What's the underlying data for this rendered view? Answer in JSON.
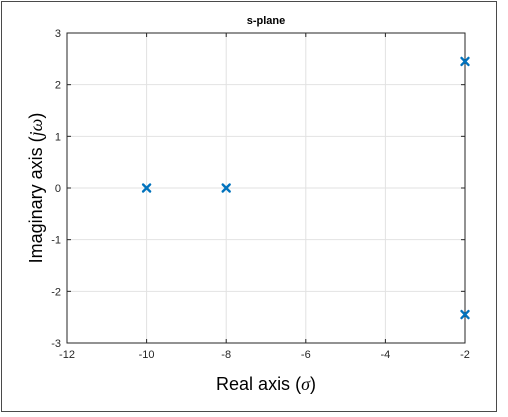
{
  "chart_data": {
    "type": "scatter",
    "title": "s-plane",
    "xlabel": {
      "prefix": "Real axis (",
      "symbol": "σ",
      "suffix": ")"
    },
    "ylabel": {
      "prefix": "Imaginary axis (",
      "symbol": "jω",
      "suffix": ")"
    },
    "xlim": [
      -12,
      -2
    ],
    "ylim": [
      -3,
      3
    ],
    "xticks": [
      -12,
      -10,
      -8,
      -6,
      -4,
      -2
    ],
    "yticks": [
      -3,
      -2,
      -1,
      0,
      1,
      2,
      3
    ],
    "grid": true,
    "marker": "x",
    "marker_color": "#0072BD",
    "points": [
      {
        "x": -10,
        "y": 0
      },
      {
        "x": -8,
        "y": 0
      },
      {
        "x": -2,
        "y": 2.45
      },
      {
        "x": -2,
        "y": -2.45
      }
    ]
  }
}
